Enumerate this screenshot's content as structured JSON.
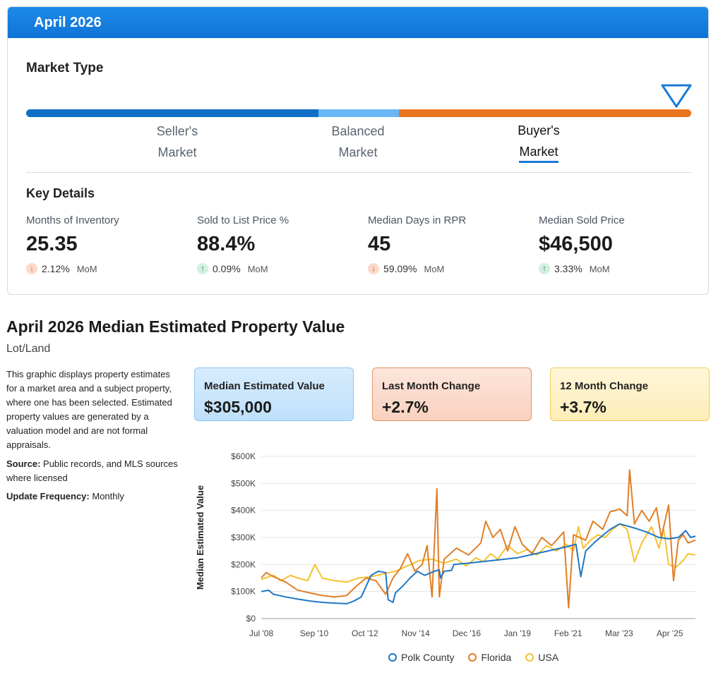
{
  "header": {
    "title": "April 2026"
  },
  "market_type": {
    "heading": "Market Type",
    "bar_colors": {
      "seller": "#0f6fc6",
      "balanced": "#6ab7f5",
      "buyer": "#e8741e"
    },
    "labels": [
      {
        "line1": "Seller's",
        "line2": "Market"
      },
      {
        "line1": "Balanced",
        "line2": "Market"
      },
      {
        "line1": "Buyer's",
        "line2": "Market"
      }
    ],
    "selected": "Buyer's Market",
    "indicator_icon": "triangle-down-marker-icon"
  },
  "key_details": {
    "heading": "Key Details",
    "items": [
      {
        "label": "Months of Inventory",
        "value": "25.35",
        "direction": "down",
        "change": "2.12%",
        "period": "MoM"
      },
      {
        "label": "Sold to List Price %",
        "value": "88.4%",
        "direction": "up",
        "change": "0.09%",
        "period": "MoM"
      },
      {
        "label": "Median Days in RPR",
        "value": "45",
        "direction": "down",
        "change": "59.09%",
        "period": "MoM"
      },
      {
        "label": "Median Sold Price",
        "value": "$46,500",
        "direction": "up",
        "change": "3.33%",
        "period": "MoM"
      }
    ]
  },
  "property_value": {
    "title": "April 2026 Median Estimated Property Value",
    "subtitle": "Lot/Land",
    "description": "This graphic displays property estimates for a market area and a subject property, where one has been selected. Estimated property values are generated by a valuation model and are not formal appraisals.",
    "source_label": "Source:",
    "source_text": "Public records, and MLS sources where licensed",
    "update_label": "Update Frequency:",
    "update_text": "Monthly",
    "boxes": [
      {
        "label": "Median Estimated Value",
        "value": "$305,000"
      },
      {
        "label": "Last Month Change",
        "value": "+2.7%"
      },
      {
        "label": "12 Month Change",
        "value": "+3.7%"
      }
    ]
  },
  "chart_data": {
    "type": "line",
    "ylabel": "Median Estimated Value",
    "ylim": [
      0,
      600000
    ],
    "yticks": [
      0,
      100000,
      200000,
      300000,
      400000,
      500000,
      600000
    ],
    "ytick_labels": [
      "$0",
      "$100K",
      "$200K",
      "$300K",
      "$400K",
      "$500K",
      "$600K"
    ],
    "xlim": [
      2008.5,
      2026.3
    ],
    "xticks": [
      2008.5,
      2010.67,
      2012.75,
      2014.83,
      2016.92,
      2019.0,
      2021.08,
      2023.17,
      2025.25
    ],
    "xtick_labels": [
      "Jul '08",
      "Sep '10",
      "Oct '12",
      "Nov '14",
      "Dec '16",
      "Jan '19",
      "Feb '21",
      "Mar '23",
      "Apr '25"
    ],
    "grid": "horizontal",
    "legend_position": "bottom-center",
    "series": [
      {
        "name": "Polk County",
        "color": "#1f77c4",
        "points": [
          [
            2008.5,
            100000
          ],
          [
            2008.8,
            105000
          ],
          [
            2009.0,
            90000
          ],
          [
            2009.5,
            80000
          ],
          [
            2010.0,
            72000
          ],
          [
            2010.5,
            65000
          ],
          [
            2011.0,
            60000
          ],
          [
            2011.5,
            57000
          ],
          [
            2012.0,
            55000
          ],
          [
            2012.3,
            65000
          ],
          [
            2012.6,
            80000
          ],
          [
            2012.8,
            120000
          ],
          [
            2013.0,
            160000
          ],
          [
            2013.3,
            175000
          ],
          [
            2013.6,
            170000
          ],
          [
            2013.7,
            70000
          ],
          [
            2013.9,
            60000
          ],
          [
            2014.0,
            95000
          ],
          [
            2014.3,
            120000
          ],
          [
            2014.6,
            150000
          ],
          [
            2014.9,
            175000
          ],
          [
            2015.2,
            160000
          ],
          [
            2015.6,
            175000
          ],
          [
            2015.8,
            180000
          ],
          [
            2015.85,
            150000
          ],
          [
            2016.0,
            175000
          ],
          [
            2016.3,
            178000
          ],
          [
            2016.4,
            200000
          ],
          [
            2017.0,
            205000
          ],
          [
            2018.0,
            215000
          ],
          [
            2019.0,
            225000
          ],
          [
            2020.0,
            245000
          ],
          [
            2021.0,
            265000
          ],
          [
            2021.4,
            275000
          ],
          [
            2021.6,
            155000
          ],
          [
            2021.8,
            250000
          ],
          [
            2022.2,
            285000
          ],
          [
            2022.8,
            330000
          ],
          [
            2023.2,
            350000
          ],
          [
            2023.8,
            335000
          ],
          [
            2024.3,
            320000
          ],
          [
            2024.8,
            300000
          ],
          [
            2025.2,
            295000
          ],
          [
            2025.6,
            300000
          ],
          [
            2025.9,
            325000
          ],
          [
            2026.1,
            300000
          ],
          [
            2026.3,
            305000
          ]
        ]
      },
      {
        "name": "Florida",
        "color": "#e07f26",
        "points": [
          [
            2008.5,
            150000
          ],
          [
            2008.7,
            170000
          ],
          [
            2009.0,
            155000
          ],
          [
            2009.5,
            135000
          ],
          [
            2010.0,
            105000
          ],
          [
            2010.5,
            95000
          ],
          [
            2011.0,
            85000
          ],
          [
            2011.5,
            80000
          ],
          [
            2012.0,
            85000
          ],
          [
            2012.4,
            120000
          ],
          [
            2012.8,
            150000
          ],
          [
            2013.2,
            140000
          ],
          [
            2013.6,
            90000
          ],
          [
            2013.9,
            150000
          ],
          [
            2014.2,
            185000
          ],
          [
            2014.5,
            240000
          ],
          [
            2014.8,
            175000
          ],
          [
            2015.1,
            200000
          ],
          [
            2015.3,
            270000
          ],
          [
            2015.5,
            80000
          ],
          [
            2015.7,
            480000
          ],
          [
            2015.8,
            80000
          ],
          [
            2016.0,
            220000
          ],
          [
            2016.5,
            260000
          ],
          [
            2017.0,
            235000
          ],
          [
            2017.5,
            280000
          ],
          [
            2017.7,
            360000
          ],
          [
            2018.0,
            300000
          ],
          [
            2018.3,
            330000
          ],
          [
            2018.6,
            250000
          ],
          [
            2018.9,
            340000
          ],
          [
            2019.2,
            275000
          ],
          [
            2019.6,
            240000
          ],
          [
            2020.0,
            300000
          ],
          [
            2020.4,
            270000
          ],
          [
            2020.9,
            320000
          ],
          [
            2021.1,
            40000
          ],
          [
            2021.3,
            310000
          ],
          [
            2021.8,
            290000
          ],
          [
            2022.1,
            360000
          ],
          [
            2022.5,
            330000
          ],
          [
            2022.8,
            395000
          ],
          [
            2023.2,
            405000
          ],
          [
            2023.5,
            380000
          ],
          [
            2023.6,
            550000
          ],
          [
            2023.8,
            350000
          ],
          [
            2024.1,
            400000
          ],
          [
            2024.4,
            360000
          ],
          [
            2024.7,
            410000
          ],
          [
            2024.9,
            300000
          ],
          [
            2025.2,
            420000
          ],
          [
            2025.4,
            140000
          ],
          [
            2025.6,
            290000
          ],
          [
            2025.8,
            310000
          ],
          [
            2026.0,
            280000
          ],
          [
            2026.3,
            290000
          ]
        ]
      },
      {
        "name": "USA",
        "color": "#f6c12f",
        "points": [
          [
            2008.5,
            145000
          ],
          [
            2009.0,
            160000
          ],
          [
            2009.3,
            140000
          ],
          [
            2009.7,
            160000
          ],
          [
            2010.0,
            150000
          ],
          [
            2010.4,
            140000
          ],
          [
            2010.7,
            200000
          ],
          [
            2011.0,
            150000
          ],
          [
            2011.5,
            140000
          ],
          [
            2012.0,
            135000
          ],
          [
            2012.5,
            150000
          ],
          [
            2013.0,
            155000
          ],
          [
            2013.5,
            165000
          ],
          [
            2014.0,
            175000
          ],
          [
            2014.5,
            195000
          ],
          [
            2015.0,
            215000
          ],
          [
            2015.5,
            220000
          ],
          [
            2016.0,
            205000
          ],
          [
            2016.5,
            220000
          ],
          [
            2016.9,
            195000
          ],
          [
            2017.3,
            225000
          ],
          [
            2017.6,
            210000
          ],
          [
            2017.9,
            240000
          ],
          [
            2018.2,
            220000
          ],
          [
            2018.6,
            270000
          ],
          [
            2019.0,
            240000
          ],
          [
            2019.4,
            255000
          ],
          [
            2019.8,
            235000
          ],
          [
            2020.2,
            270000
          ],
          [
            2020.6,
            250000
          ],
          [
            2021.0,
            275000
          ],
          [
            2021.3,
            250000
          ],
          [
            2021.5,
            340000
          ],
          [
            2021.7,
            260000
          ],
          [
            2022.0,
            290000
          ],
          [
            2022.3,
            310000
          ],
          [
            2022.6,
            300000
          ],
          [
            2022.9,
            330000
          ],
          [
            2023.2,
            350000
          ],
          [
            2023.5,
            330000
          ],
          [
            2023.8,
            210000
          ],
          [
            2024.1,
            280000
          ],
          [
            2024.5,
            340000
          ],
          [
            2024.8,
            260000
          ],
          [
            2025.0,
            330000
          ],
          [
            2025.2,
            200000
          ],
          [
            2025.5,
            190000
          ],
          [
            2025.8,
            215000
          ],
          [
            2026.0,
            240000
          ],
          [
            2026.3,
            235000
          ]
        ]
      }
    ]
  }
}
